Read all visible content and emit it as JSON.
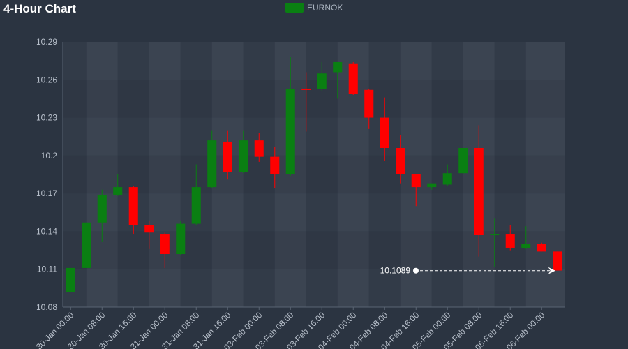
{
  "chart_data": {
    "type": "candlestick",
    "title": "4-Hour Chart",
    "legend": [
      {
        "name": "EURNOK",
        "color": "#0a7f12"
      }
    ],
    "legend_position": "top-center",
    "xlabel": "",
    "ylabel": "",
    "ylim": [
      10.08,
      10.29
    ],
    "yticks": [
      "10.29",
      "10.26",
      "10.23",
      "10.2",
      "10.17",
      "10.14",
      "10.11",
      "10.08"
    ],
    "xticks": [
      {
        "index": 0,
        "label": "30-Jan 00:00"
      },
      {
        "index": 2,
        "label": "30-Jan 08:00"
      },
      {
        "index": 4,
        "label": "30-Jan 16:00"
      },
      {
        "index": 6,
        "label": "31-Jan 00:00"
      },
      {
        "index": 8,
        "label": "31-Jan 08:00"
      },
      {
        "index": 10,
        "label": "31-Jan 16:00"
      },
      {
        "index": 12,
        "label": "03-Feb 00:00"
      },
      {
        "index": 14,
        "label": "03-Feb 08:00"
      },
      {
        "index": 16,
        "label": "03-Feb 16:00"
      },
      {
        "index": 18,
        "label": "04-Feb 00:00"
      },
      {
        "index": 20,
        "label": "04-Feb 08:00"
      },
      {
        "index": 22,
        "label": "04-Feb 16:00"
      },
      {
        "index": 24,
        "label": "05-Feb 00:00"
      },
      {
        "index": 26,
        "label": "05-Feb 08:00"
      },
      {
        "index": 28,
        "label": "05-Feb 16:00"
      },
      {
        "index": 30,
        "label": "06-Feb 00:00"
      }
    ],
    "up_color": "#0a7f12",
    "down_color": "#ff0000",
    "candles": [
      {
        "open": 10.092,
        "high": 10.111,
        "low": 10.092,
        "close": 10.111
      },
      {
        "open": 10.111,
        "high": 10.147,
        "low": 10.111,
        "close": 10.147
      },
      {
        "open": 10.147,
        "high": 10.173,
        "low": 10.132,
        "close": 10.169
      },
      {
        "open": 10.169,
        "high": 10.185,
        "low": 10.168,
        "close": 10.175
      },
      {
        "open": 10.175,
        "high": 10.176,
        "low": 10.138,
        "close": 10.145
      },
      {
        "open": 10.145,
        "high": 10.148,
        "low": 10.126,
        "close": 10.139
      },
      {
        "open": 10.138,
        "high": 10.139,
        "low": 10.111,
        "close": 10.122
      },
      {
        "open": 10.122,
        "high": 10.148,
        "low": 10.121,
        "close": 10.146
      },
      {
        "open": 10.146,
        "high": 10.193,
        "low": 10.145,
        "close": 10.175
      },
      {
        "open": 10.175,
        "high": 10.22,
        "low": 10.174,
        "close": 10.212
      },
      {
        "open": 10.211,
        "high": 10.22,
        "low": 10.181,
        "close": 10.187
      },
      {
        "open": 10.187,
        "high": 10.22,
        "low": 10.186,
        "close": 10.212
      },
      {
        "open": 10.212,
        "high": 10.218,
        "low": 10.195,
        "close": 10.199
      },
      {
        "open": 10.199,
        "high": 10.207,
        "low": 10.174,
        "close": 10.185
      },
      {
        "open": 10.185,
        "high": 10.278,
        "low": 10.184,
        "close": 10.253
      },
      {
        "open": 10.253,
        "high": 10.266,
        "low": 10.219,
        "close": 10.252
      },
      {
        "open": 10.253,
        "high": 10.274,
        "low": 10.251,
        "close": 10.265
      },
      {
        "open": 10.266,
        "high": 10.274,
        "low": 10.245,
        "close": 10.274
      },
      {
        "open": 10.273,
        "high": 10.274,
        "low": 10.248,
        "close": 10.249
      },
      {
        "open": 10.252,
        "high": 10.253,
        "low": 10.221,
        "close": 10.23
      },
      {
        "open": 10.23,
        "high": 10.246,
        "low": 10.196,
        "close": 10.206
      },
      {
        "open": 10.206,
        "high": 10.216,
        "low": 10.178,
        "close": 10.185
      },
      {
        "open": 10.185,
        "high": 10.185,
        "low": 10.16,
        "close": 10.175
      },
      {
        "open": 10.175,
        "high": 10.178,
        "low": 10.173,
        "close": 10.178
      },
      {
        "open": 10.177,
        "high": 10.193,
        "low": 10.176,
        "close": 10.186
      },
      {
        "open": 10.186,
        "high": 10.206,
        "low": 10.185,
        "close": 10.206
      },
      {
        "open": 10.206,
        "high": 10.224,
        "low": 10.12,
        "close": 10.137
      },
      {
        "open": 10.137,
        "high": 10.15,
        "low": 10.112,
        "close": 10.138
      },
      {
        "open": 10.138,
        "high": 10.145,
        "low": 10.125,
        "close": 10.127
      },
      {
        "open": 10.127,
        "high": 10.144,
        "low": 10.126,
        "close": 10.13
      },
      {
        "open": 10.13,
        "high": 10.131,
        "low": 10.124,
        "close": 10.124
      },
      {
        "open": 10.124,
        "high": 10.124,
        "low": 10.109,
        "close": 10.109
      }
    ],
    "last_price": {
      "label": "10.1089",
      "value": 10.1089,
      "color": "#ffffff"
    }
  }
}
